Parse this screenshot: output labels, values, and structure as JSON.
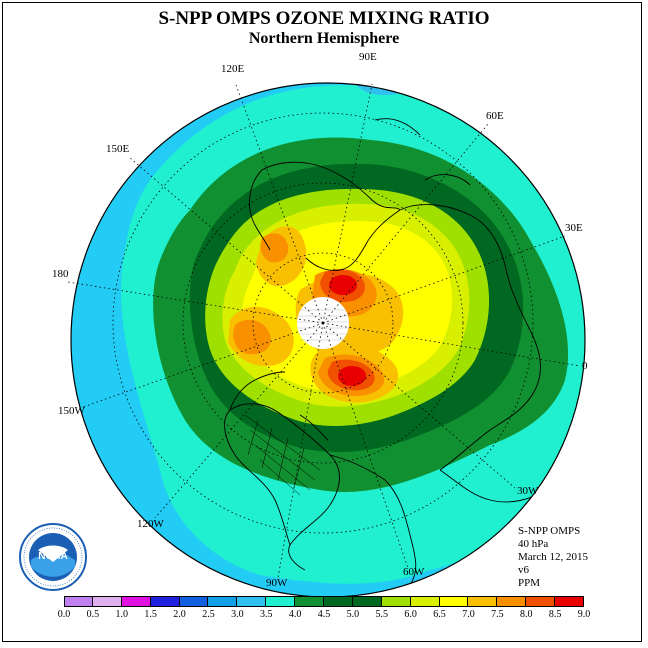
{
  "title": "S-NPP OMPS OZONE MIXING RATIO",
  "subtitle": "Northern Hemisphere",
  "longitude_labels": {
    "e120": "120E",
    "e90": "90E",
    "e60": "60E",
    "e150": "150E",
    "e30": "30E",
    "d180": "180",
    "d0": "0",
    "w150": "150W",
    "w30": "30W",
    "w120": "120W",
    "w90": "90W",
    "w60": "60W"
  },
  "info": {
    "instrument": "S-NPP OMPS",
    "pressure": "40 hPa",
    "date": "March 12, 2015",
    "version": "v6",
    "units": "PPM"
  },
  "logo": {
    "text": "NOAA",
    "icon": "noaa-logo"
  },
  "colorbar": {
    "ticks": [
      "0.0",
      "0.5",
      "1.0",
      "1.5",
      "2.0",
      "2.5",
      "3.0",
      "3.5",
      "4.0",
      "4.5",
      "5.0",
      "5.5",
      "6.0",
      "6.5",
      "7.0",
      "7.5",
      "8.0",
      "8.5",
      "9.0"
    ],
    "colors": [
      "#c080f0",
      "#e0b0f0",
      "#e010e0",
      "#2020e0",
      "#1060e0",
      "#10a0e8",
      "#30c0f0",
      "#20f0d0",
      "#109030",
      "#006820",
      "#006820",
      "#a0e000",
      "#d8f000",
      "#ffff00",
      "#f8c000",
      "#f89000",
      "#f05000",
      "#e80000",
      "#805030"
    ]
  },
  "map_colors": {
    "ocean_background": "#22ccf5",
    "polar_night": "#ffffff"
  }
}
